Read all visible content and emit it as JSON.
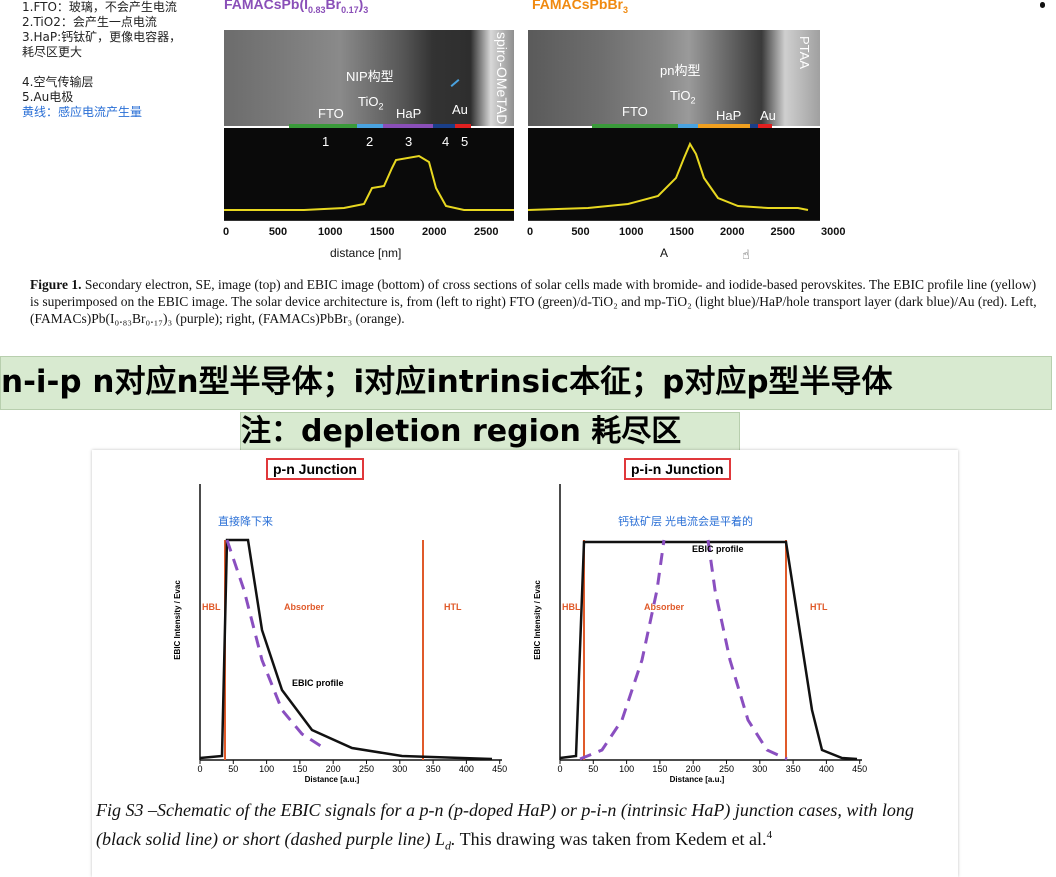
{
  "notes": {
    "line1": "1.FTO：玻璃，不会产生电流",
    "line2": "2.TiO2：会产生一点电流",
    "line3": "3.HaP:钙钛矿，更像电容器，",
    "line3b": "耗尽区更大",
    "line4": "4.空气传输层",
    "line5": "5.Au电极",
    "line6": "黄线：感应电流产生量"
  },
  "figure1": {
    "left_title": "FAMACsPb(I",
    "left_title_sub1": "0.83",
    "left_title_mid": "Br",
    "left_title_sub2": "0.17",
    "left_title_end": ")",
    "left_title_sub3": "3",
    "right_title": "FAMACsPbBr",
    "right_title_sub": "3",
    "left_annot": "NIP构型",
    "right_annot": "pn构型",
    "left_vertical": "spiro-OMeTAD",
    "right_vertical": "PTAA",
    "layers_left": {
      "fto": "FTO",
      "tio2": "TiO",
      "tio2_sub": "2",
      "hap": "HaP",
      "au": "Au"
    },
    "layers_right": {
      "fto": "FTO",
      "tio2": "TiO",
      "tio2_sub": "2",
      "hap": "HaP",
      "au": "Au"
    },
    "numbers": [
      "1",
      "2",
      "3",
      "4",
      "5"
    ],
    "left_ticks": [
      "0",
      "500",
      "1000",
      "1500",
      "2000",
      "2500"
    ],
    "right_ticks": [
      "0",
      "500",
      "1000",
      "1500",
      "2000",
      "2500",
      "3000"
    ],
    "left_xlabel": "distance [nm]",
    "right_xlabel": "A",
    "colors": {
      "fto": "#3a9a3a",
      "tio2": "#4aa3e0",
      "hap_left": "#8a4fb8",
      "hap_right": "#f0a020",
      "htl": "#1a3f8a",
      "au": "#e02020",
      "profile": "#e8d820"
    },
    "caption_bold": "Figure 1.",
    "caption_text": "Secondary electron, SE, image (top) and EBIC image (bottom) of cross sections of solar cells made with bromide- and iodide-based perovskites. The EBIC profile line (yellow) is superimposed on the EBIC image. The solar device architecture is, from (left to right) FTO (green)/d-TiO₂ and mp-TiO₂ (light blue)/HaP/hole transport layer (dark blue)/Au (red). Left, (FAMACs)Pb(I₀.₈₃Br₀.₁₇)₃ (purple); right, (FAMACs)PbBr₃ (orange)."
  },
  "banner": {
    "line1": "n-i-p n对应n型半导体；i对应intrinsic本征；p对应p型半导体",
    "line2": "注：depletion region 耗尽区"
  },
  "schematic": {
    "left_title": "p-n Junction",
    "right_title": "p-i-n Junction",
    "left_annot": "直接降下来",
    "right_annot": "钙钛矿层 光电流会是平着的",
    "ylabel": "EBIC Intensity / Evac",
    "xlabel": "Distance [a.u.]",
    "ticks": [
      "0",
      "50",
      "100",
      "150",
      "200",
      "250",
      "300",
      "350",
      "400",
      "450"
    ],
    "hbl": "HBL",
    "absorber": "Absorber",
    "htl": "HTL",
    "ebic_profile": "EBIC profile",
    "colors": {
      "solid": "#111111",
      "dashed": "#8a4fc0",
      "region": "#e05a2a"
    }
  },
  "caption2": {
    "part1": "Fig S3 –Schematic of the EBIC signals for a p-n (p-doped HaP) or p-i-n (intrinsic HaP) junction cases, with long (black solid line) or short (dashed purple line) L",
    "sub": "d",
    "part2": ".",
    "part3": " This drawing was taken from Kedem et al.",
    "sup": "4"
  }
}
